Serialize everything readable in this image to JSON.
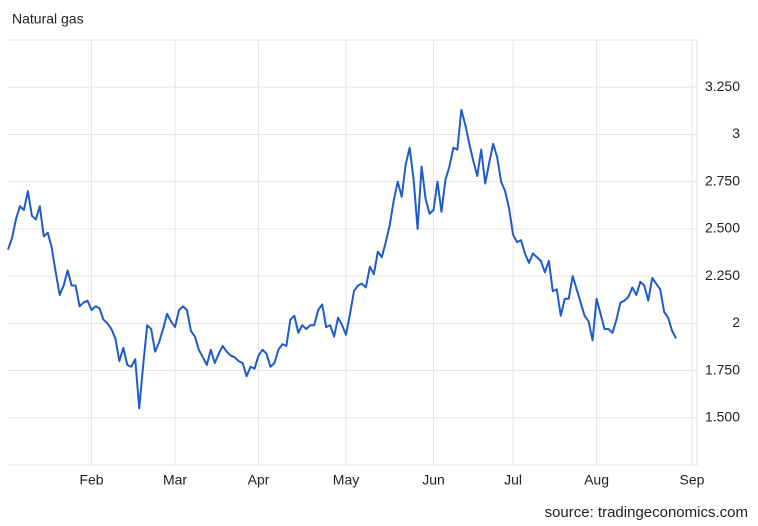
{
  "chart_data": {
    "type": "line",
    "title": "Natural gas",
    "source": "source: tradingeconomics.com",
    "categories": [
      null,
      null,
      null,
      null,
      null,
      null,
      null,
      null,
      null,
      null,
      null,
      null,
      null,
      null,
      null,
      null,
      null,
      null,
      null,
      null,
      null,
      "Feb",
      null,
      null,
      null,
      null,
      null,
      null,
      null,
      null,
      null,
      null,
      null,
      null,
      null,
      null,
      null,
      null,
      null,
      null,
      null,
      null,
      "Mar",
      null,
      null,
      null,
      null,
      null,
      null,
      null,
      null,
      null,
      null,
      null,
      null,
      null,
      null,
      null,
      null,
      null,
      null,
      null,
      null,
      "Apr",
      null,
      null,
      null,
      null,
      null,
      null,
      null,
      null,
      null,
      null,
      null,
      null,
      null,
      null,
      null,
      null,
      null,
      null,
      null,
      null,
      null,
      "May",
      null,
      null,
      null,
      null,
      null,
      null,
      null,
      null,
      null,
      null,
      null,
      null,
      null,
      null,
      null,
      null,
      null,
      null,
      null,
      null,
      null,
      "Jun",
      null,
      null,
      null,
      null,
      null,
      null,
      null,
      null,
      null,
      null,
      null,
      null,
      null,
      null,
      null,
      null,
      null,
      null,
      null,
      "Jul",
      null,
      null,
      null,
      null,
      null,
      null,
      null,
      null,
      null,
      null,
      null,
      null,
      null,
      null,
      null,
      null,
      null,
      null,
      null,
      null,
      "Aug",
      null,
      null,
      null,
      null,
      null,
      null,
      null,
      null,
      null,
      null,
      null,
      null,
      null,
      null,
      null,
      null,
      null,
      null,
      null,
      null,
      null,
      null,
      null,
      "Sep"
    ],
    "series": [
      {
        "name": "Natural gas",
        "color": "#1f5cc8",
        "values": [
          2.39,
          2.45,
          2.55,
          2.62,
          2.6,
          2.7,
          2.57,
          2.55,
          2.62,
          2.46,
          2.48,
          2.4,
          2.27,
          2.15,
          2.2,
          2.28,
          2.2,
          2.2,
          2.09,
          2.11,
          2.12,
          2.07,
          2.09,
          2.08,
          2.02,
          2.0,
          1.97,
          1.92,
          1.8,
          1.87,
          1.78,
          1.77,
          1.81,
          1.55,
          1.78,
          1.99,
          1.97,
          1.85,
          1.9,
          1.97,
          2.05,
          2.01,
          1.98,
          2.07,
          2.09,
          2.07,
          1.96,
          1.93,
          1.86,
          1.82,
          1.78,
          1.86,
          1.79,
          1.84,
          1.88,
          1.85,
          1.83,
          1.82,
          1.8,
          1.79,
          1.72,
          1.77,
          1.76,
          1.83,
          1.86,
          1.84,
          1.77,
          1.79,
          1.86,
          1.89,
          1.88,
          2.02,
          2.04,
          1.95,
          1.99,
          1.97,
          1.99,
          1.99,
          2.07,
          2.1,
          1.98,
          1.99,
          1.93,
          2.03,
          1.99,
          1.94,
          2.05,
          2.17,
          2.2,
          2.21,
          2.19,
          2.3,
          2.26,
          2.38,
          2.35,
          2.43,
          2.52,
          2.65,
          2.75,
          2.67,
          2.84,
          2.93,
          2.76,
          2.5,
          2.83,
          2.66,
          2.58,
          2.6,
          2.75,
          2.59,
          2.76,
          2.83,
          2.93,
          2.92,
          3.13,
          3.05,
          2.95,
          2.86,
          2.78,
          2.92,
          2.74,
          2.85,
          2.95,
          2.88,
          2.75,
          2.7,
          2.61,
          2.47,
          2.43,
          2.44,
          2.37,
          2.32,
          2.37,
          2.35,
          2.33,
          2.27,
          2.33,
          2.17,
          2.18,
          2.04,
          2.13,
          2.13,
          2.25,
          2.18,
          2.11,
          2.04,
          2.01,
          1.91,
          2.13,
          2.05,
          1.97,
          1.97,
          1.95,
          2.02,
          2.11,
          2.12,
          2.14,
          2.19,
          2.15,
          2.22,
          2.2,
          2.12,
          2.24,
          2.21,
          2.18,
          2.06,
          2.03,
          1.96,
          1.92,
          null,
          null,
          null,
          null
        ]
      }
    ],
    "ylim": [
      1.25,
      3.5
    ],
    "yticks": [
      {
        "value": 1.5,
        "label": "1.500"
      },
      {
        "value": 1.75,
        "label": "1.750"
      },
      2,
      {
        "value": 2.25,
        "label": "2.250"
      },
      {
        "value": 2.5,
        "label": "2.500"
      },
      {
        "value": 2.75,
        "label": "2.750"
      },
      3,
      {
        "value": 3.25,
        "label": "3.250"
      }
    ],
    "grid": true
  }
}
